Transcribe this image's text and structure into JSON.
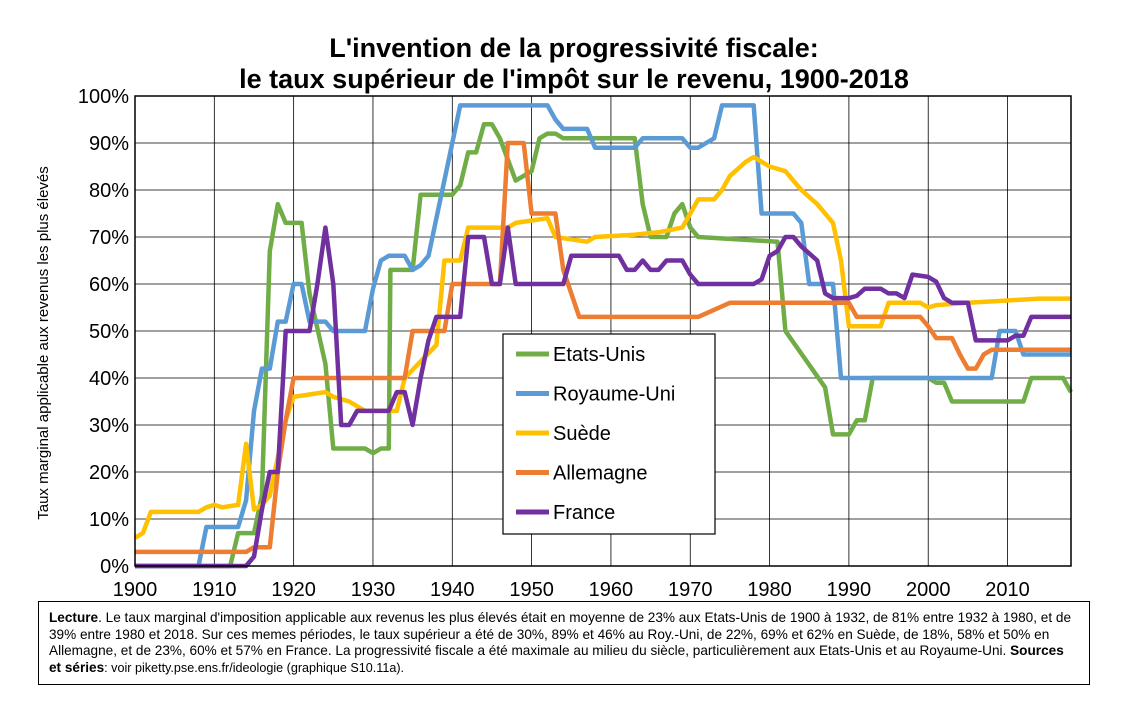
{
  "chart_data": {
    "type": "line",
    "title": "L'invention de la progressivité fiscale:",
    "subtitle": "le taux supérieur de l'impôt sur le revenu, 1900-2018",
    "xlabel": "",
    "ylabel": "Taux marginal applicable aux revenus les plus élevés",
    "xlim": [
      1900,
      2018
    ],
    "ylim": [
      0,
      100
    ],
    "x_ticks": [
      "1900",
      "1910",
      "1920",
      "1930",
      "1940",
      "1950",
      "1960",
      "1970",
      "1980",
      "1990",
      "2000",
      "2010"
    ],
    "y_ticks": [
      "0%",
      "10%",
      "20%",
      "30%",
      "40%",
      "50%",
      "60%",
      "70%",
      "80%",
      "90%",
      "100%"
    ],
    "grid": "vertical-and-horizontal",
    "legend_position": "center",
    "series": [
      {
        "name": "Etats-Unis",
        "color": "#70ad47",
        "points": [
          [
            1900,
            0
          ],
          [
            1912,
            0
          ],
          [
            1913,
            7
          ],
          [
            1915,
            7
          ],
          [
            1916,
            15
          ],
          [
            1917,
            67
          ],
          [
            1918,
            77
          ],
          [
            1919,
            73
          ],
          [
            1921,
            73
          ],
          [
            1922,
            58
          ],
          [
            1924,
            43
          ],
          [
            1925,
            25
          ],
          [
            1929,
            25
          ],
          [
            1930,
            24
          ],
          [
            1931,
            25
          ],
          [
            1932,
            25
          ],
          [
            1932.2,
            63
          ],
          [
            1935,
            63
          ],
          [
            1936,
            79
          ],
          [
            1940,
            79
          ],
          [
            1941,
            81
          ],
          [
            1942,
            88
          ],
          [
            1943,
            88
          ],
          [
            1944,
            94
          ],
          [
            1945,
            94
          ],
          [
            1946,
            91
          ],
          [
            1948,
            82
          ],
          [
            1950,
            84
          ],
          [
            1951,
            91
          ],
          [
            1952,
            92
          ],
          [
            1953,
            92
          ],
          [
            1954,
            91
          ],
          [
            1963,
            91
          ],
          [
            1964,
            77
          ],
          [
            1965,
            70
          ],
          [
            1967,
            70
          ],
          [
            1968,
            75
          ],
          [
            1969,
            77
          ],
          [
            1970,
            72
          ],
          [
            1971,
            70
          ],
          [
            1981,
            69
          ],
          [
            1982,
            50
          ],
          [
            1987,
            38
          ],
          [
            1988,
            28
          ],
          [
            1990,
            28
          ],
          [
            1991,
            31
          ],
          [
            1992,
            31
          ],
          [
            1993,
            40
          ],
          [
            2000,
            40
          ],
          [
            2001,
            39
          ],
          [
            2002,
            39
          ],
          [
            2003,
            35
          ],
          [
            2012,
            35
          ],
          [
            2013,
            40
          ],
          [
            2017,
            40
          ],
          [
            2018,
            37
          ]
        ]
      },
      {
        "name": "Royaume-Uni",
        "color": "#5b9bd5",
        "points": [
          [
            1900,
            0
          ],
          [
            1908,
            0
          ],
          [
            1909,
            8.3
          ],
          [
            1913,
            8.3
          ],
          [
            1914,
            14
          ],
          [
            1915,
            33
          ],
          [
            1916,
            42
          ],
          [
            1917,
            42
          ],
          [
            1918,
            52
          ],
          [
            1919,
            52
          ],
          [
            1920,
            60
          ],
          [
            1921,
            60
          ],
          [
            1922,
            52
          ],
          [
            1924,
            52
          ],
          [
            1925,
            50
          ],
          [
            1929,
            50
          ],
          [
            1930,
            59
          ],
          [
            1931,
            65
          ],
          [
            1932,
            66
          ],
          [
            1934,
            66
          ],
          [
            1935,
            63
          ],
          [
            1936,
            64
          ],
          [
            1937,
            66
          ],
          [
            1938,
            74
          ],
          [
            1940,
            90
          ],
          [
            1941,
            98
          ],
          [
            1952,
            98
          ],
          [
            1953,
            95
          ],
          [
            1954,
            93
          ],
          [
            1957,
            93
          ],
          [
            1958,
            89
          ],
          [
            1963,
            89
          ],
          [
            1964,
            91
          ],
          [
            1968,
            91
          ],
          [
            1969,
            91
          ],
          [
            1970,
            89
          ],
          [
            1971,
            89
          ],
          [
            1972,
            90
          ],
          [
            1973,
            91
          ],
          [
            1974,
            98
          ],
          [
            1978,
            98
          ],
          [
            1979,
            75
          ],
          [
            1983,
            75
          ],
          [
            1984,
            73
          ],
          [
            1985,
            60
          ],
          [
            1988,
            60
          ],
          [
            1989,
            40
          ],
          [
            2008,
            40
          ],
          [
            2009,
            50
          ],
          [
            2011,
            50
          ],
          [
            2012,
            45
          ],
          [
            2018,
            45
          ]
        ]
      },
      {
        "name": "Suède",
        "color": "#ffc000",
        "points": [
          [
            1900,
            6
          ],
          [
            1901,
            7
          ],
          [
            1902,
            11.5
          ],
          [
            1904,
            11.5
          ],
          [
            1905,
            11.5
          ],
          [
            1908,
            11.5
          ],
          [
            1909,
            12.5
          ],
          [
            1910,
            13
          ],
          [
            1911,
            12.5
          ],
          [
            1913,
            13
          ],
          [
            1914,
            26
          ],
          [
            1915,
            12
          ],
          [
            1916,
            13
          ],
          [
            1917,
            15
          ],
          [
            1919,
            31
          ],
          [
            1920,
            36
          ],
          [
            1924,
            37
          ],
          [
            1925,
            36
          ],
          [
            1927,
            35
          ],
          [
            1929,
            33
          ],
          [
            1933,
            33
          ],
          [
            1934,
            40
          ],
          [
            1938,
            47
          ],
          [
            1939,
            65
          ],
          [
            1941,
            65
          ],
          [
            1942,
            72
          ],
          [
            1947,
            72
          ],
          [
            1948,
            73
          ],
          [
            1952,
            74
          ],
          [
            1953,
            70
          ],
          [
            1957,
            69
          ],
          [
            1958,
            70
          ],
          [
            1963,
            70.5
          ],
          [
            1966,
            71
          ],
          [
            1969,
            72
          ],
          [
            1970,
            75
          ],
          [
            1971,
            78
          ],
          [
            1973,
            78
          ],
          [
            1974,
            80
          ],
          [
            1975,
            83
          ],
          [
            1977,
            86
          ],
          [
            1978,
            87
          ],
          [
            1980,
            85
          ],
          [
            1982,
            84
          ],
          [
            1984,
            80
          ],
          [
            1986,
            77
          ],
          [
            1988,
            73
          ],
          [
            1989,
            65
          ],
          [
            1990,
            51
          ],
          [
            1994,
            51
          ],
          [
            1995,
            56
          ],
          [
            1998,
            56
          ],
          [
            1999,
            56
          ],
          [
            2000,
            55
          ],
          [
            2001,
            55.5
          ],
          [
            2005,
            56
          ],
          [
            2010,
            56.5
          ],
          [
            2014,
            56.9
          ],
          [
            2018,
            56.9
          ]
        ]
      },
      {
        "name": "Allemagne",
        "color": "#ed7d31",
        "points": [
          [
            1900,
            3
          ],
          [
            1914,
            3
          ],
          [
            1915,
            4
          ],
          [
            1917,
            4
          ],
          [
            1918,
            20
          ],
          [
            1919,
            31
          ],
          [
            1920,
            40
          ],
          [
            1934,
            40
          ],
          [
            1935,
            50
          ],
          [
            1939,
            50
          ],
          [
            1940,
            60
          ],
          [
            1946,
            60
          ],
          [
            1947,
            90
          ],
          [
            1949,
            90
          ],
          [
            1950,
            75
          ],
          [
            1953,
            75
          ],
          [
            1954,
            63
          ],
          [
            1956,
            53
          ],
          [
            1970,
            53
          ],
          [
            1971,
            53
          ],
          [
            1975,
            56
          ],
          [
            1990,
            56
          ],
          [
            1991,
            53
          ],
          [
            1999,
            53
          ],
          [
            2000,
            51
          ],
          [
            2001,
            48.5
          ],
          [
            2003,
            48.5
          ],
          [
            2004,
            45
          ],
          [
            2005,
            42
          ],
          [
            2006,
            42
          ],
          [
            2007,
            45
          ],
          [
            2008,
            46
          ],
          [
            2018,
            46
          ]
        ]
      },
      {
        "name": "France",
        "color": "#7030a0",
        "points": [
          [
            1900,
            0
          ],
          [
            1914,
            0
          ],
          [
            1915,
            2
          ],
          [
            1916,
            12
          ],
          [
            1917,
            20
          ],
          [
            1918,
            20
          ],
          [
            1919,
            50
          ],
          [
            1922,
            50
          ],
          [
            1923,
            60
          ],
          [
            1924,
            72
          ],
          [
            1925,
            60
          ],
          [
            1926,
            30
          ],
          [
            1927,
            30
          ],
          [
            1928,
            33
          ],
          [
            1932,
            33
          ],
          [
            1933,
            37
          ],
          [
            1934,
            37
          ],
          [
            1935,
            30
          ],
          [
            1936,
            40
          ],
          [
            1937,
            48
          ],
          [
            1938,
            53
          ],
          [
            1941,
            53
          ],
          [
            1942,
            70
          ],
          [
            1944,
            70
          ],
          [
            1945,
            60
          ],
          [
            1946,
            60
          ],
          [
            1947,
            72
          ],
          [
            1948,
            60
          ],
          [
            1954,
            60
          ],
          [
            1955,
            66
          ],
          [
            1961,
            66
          ],
          [
            1962,
            63
          ],
          [
            1963,
            63
          ],
          [
            1964,
            65
          ],
          [
            1965,
            63
          ],
          [
            1966,
            63
          ],
          [
            1967,
            65
          ],
          [
            1969,
            65
          ],
          [
            1970,
            62
          ],
          [
            1971,
            60
          ],
          [
            1978,
            60
          ],
          [
            1979,
            61
          ],
          [
            1980,
            66
          ],
          [
            1981,
            67
          ],
          [
            1982,
            70
          ],
          [
            1983,
            70
          ],
          [
            1984,
            68
          ],
          [
            1986,
            65
          ],
          [
            1987,
            58
          ],
          [
            1988,
            57
          ],
          [
            1990,
            57
          ],
          [
            1991,
            57.5
          ],
          [
            1992,
            59
          ],
          [
            1993,
            59
          ],
          [
            1994,
            59
          ],
          [
            1995,
            58
          ],
          [
            1996,
            58
          ],
          [
            1997,
            57
          ],
          [
            1998,
            62
          ],
          [
            2000,
            61.5
          ],
          [
            2001,
            60.5
          ],
          [
            2002,
            57
          ],
          [
            2003,
            56
          ],
          [
            2005,
            56
          ],
          [
            2006,
            48
          ],
          [
            2010,
            48
          ],
          [
            2011,
            49
          ],
          [
            2012,
            49
          ],
          [
            2013,
            53
          ],
          [
            2018,
            53
          ]
        ]
      }
    ]
  },
  "caption": {
    "lecture_label": "Lecture",
    "lecture_text": ". Le taux marginal d'imposition applicable aux revenus les plus élevés était en moyenne de 23% aux Etats-Unis de 1900 à 1932, de 81% entre 1932 à 1980, et de 39% entre 1980 et 2018. Sur ces memes périodes, le taux supérieur a été de 30%, 89% et 46% au Roy.-Uni, de 22%, 69% et 62% en Suède, de 18%, 58% et 50% en Allemagne, et de 23%, 60% et 57% en France. La progressivité fiscale a été maximale au milieu du siècle, particulièrement aux Etats-Unis et au Royaume-Uni. ",
    "sources_label": "Sources et séries",
    "sources_text": ": voir piketty.pse.ens.fr/ideologie (graphique S10.11a)."
  }
}
